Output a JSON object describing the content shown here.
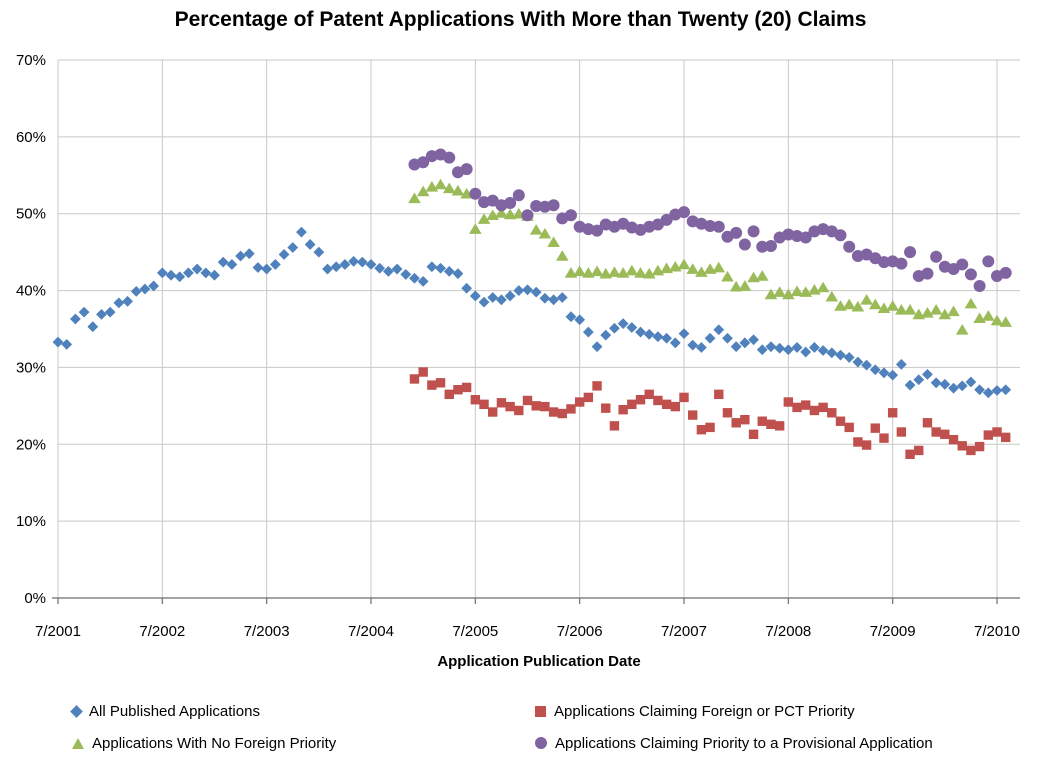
{
  "chart_data": {
    "type": "scatter",
    "title": "Percentage of Patent Applications With More than Twenty (20) Claims",
    "xlabel": "Application Publication Date",
    "ylabel": "",
    "ylim": [
      0,
      70
    ],
    "grid": true,
    "legend_position": "bottom",
    "x_ticks": [
      "7/2001",
      "7/2002",
      "7/2003",
      "7/2004",
      "7/2005",
      "7/2006",
      "7/2007",
      "7/2008",
      "7/2009",
      "7/2010"
    ],
    "y_ticks": [
      "0%",
      "10%",
      "20%",
      "30%",
      "40%",
      "50%",
      "60%",
      "70%"
    ],
    "x_unit": "month",
    "x_origin": "2001-07",
    "colors": {
      "gridline": "#C8C8C8",
      "axis": "#6E6E6E",
      "text": "#000000"
    },
    "series": [
      {
        "name": "All Published Applications",
        "marker": "diamond",
        "color": "#4F81BD",
        "start": "2001-07",
        "values": [
          33.3,
          33.0,
          36.3,
          37.2,
          35.3,
          36.9,
          37.2,
          38.4,
          38.6,
          39.9,
          40.2,
          40.6,
          42.3,
          42.0,
          41.8,
          42.3,
          42.8,
          42.3,
          42.0,
          43.7,
          43.4,
          44.5,
          44.8,
          43.0,
          42.8,
          43.4,
          44.7,
          45.6,
          47.6,
          46.0,
          45.0,
          42.8,
          43.1,
          43.4,
          43.8,
          43.7,
          43.4,
          42.9,
          42.5,
          42.8,
          42.1,
          41.6,
          41.2,
          43.1,
          42.9,
          42.5,
          42.2,
          40.3,
          39.3,
          38.5,
          39.1,
          38.8,
          39.3,
          40.0,
          40.1,
          39.8,
          39.0,
          38.8,
          39.1,
          36.6,
          36.2,
          34.6,
          32.7,
          34.2,
          35.1,
          35.7,
          35.2,
          34.6,
          34.3,
          34.0,
          33.8,
          33.2,
          34.4,
          32.9,
          32.6,
          33.8,
          34.9,
          33.8,
          32.7,
          33.2,
          33.6,
          32.3,
          32.7,
          32.5,
          32.3,
          32.6,
          32.0,
          32.6,
          32.2,
          31.9,
          31.6,
          31.3,
          30.7,
          30.3,
          29.7,
          29.3,
          29.0,
          30.4,
          27.7,
          28.4,
          29.1,
          28.0,
          27.8,
          27.3,
          27.6,
          28.1,
          27.1,
          26.7,
          27.0,
          27.1
        ]
      },
      {
        "name": "Applications Claiming Foreign or PCT Priority",
        "marker": "square",
        "color": "#C0504D",
        "start": "2004-12",
        "values": [
          28.5,
          29.4,
          27.7,
          28.0,
          26.5,
          27.1,
          27.4,
          25.8,
          25.2,
          24.2,
          25.4,
          24.9,
          24.4,
          25.7,
          25.0,
          24.9,
          24.2,
          24.0,
          24.6,
          25.5,
          26.1,
          27.6,
          24.7,
          22.4,
          24.5,
          25.2,
          25.8,
          26.5,
          25.7,
          25.2,
          24.9,
          26.1,
          23.8,
          21.9,
          22.2,
          26.5,
          24.1,
          22.8,
          23.2,
          21.3,
          23.0,
          22.6,
          22.4,
          25.5,
          24.8,
          25.1,
          24.4,
          24.8,
          24.1,
          23.0,
          22.2,
          20.3,
          19.9,
          22.1,
          20.8,
          24.1,
          21.6,
          18.7,
          19.2,
          22.8,
          21.6,
          21.3,
          20.6,
          19.8,
          19.2,
          19.7,
          21.2,
          21.6,
          20.9
        ]
      },
      {
        "name": "Applications With No Foreign Priority",
        "marker": "triangle",
        "color": "#9BBB59",
        "start": "2004-12",
        "values": [
          52.0,
          52.9,
          53.5,
          53.8,
          53.3,
          53.0,
          52.6,
          48.0,
          49.3,
          49.8,
          50.1,
          49.9,
          50.0,
          49.7,
          47.9,
          47.4,
          46.3,
          44.5,
          42.3,
          42.5,
          42.3,
          42.5,
          42.2,
          42.4,
          42.3,
          42.6,
          42.3,
          42.2,
          42.6,
          42.9,
          43.1,
          43.4,
          42.8,
          42.4,
          42.8,
          43.0,
          41.8,
          40.5,
          40.6,
          41.7,
          41.9,
          39.5,
          39.8,
          39.5,
          39.9,
          39.8,
          40.1,
          40.4,
          39.2,
          38.0,
          38.2,
          37.9,
          38.8,
          38.2,
          37.7,
          38.0,
          37.5,
          37.5,
          36.9,
          37.1,
          37.5,
          36.9,
          37.3,
          34.9,
          38.3,
          36.4,
          36.7,
          36.1,
          35.9
        ]
      },
      {
        "name": "Applications Claiming Priority to a Provisional Application",
        "marker": "circle",
        "color": "#8064A2",
        "start": "2004-12",
        "values": [
          56.4,
          56.7,
          57.5,
          57.7,
          57.3,
          55.4,
          55.8,
          52.6,
          51.5,
          51.7,
          51.1,
          51.4,
          52.4,
          49.8,
          51.0,
          50.9,
          51.1,
          49.4,
          49.8,
          48.3,
          48.0,
          47.8,
          48.6,
          48.3,
          48.7,
          48.2,
          47.9,
          48.3,
          48.6,
          49.2,
          49.9,
          50.2,
          49.0,
          48.7,
          48.4,
          48.3,
          47.0,
          47.5,
          46.0,
          47.7,
          45.7,
          45.8,
          46.9,
          47.3,
          47.1,
          46.9,
          47.7,
          48.0,
          47.7,
          47.2,
          45.7,
          44.5,
          44.7,
          44.2,
          43.7,
          43.8,
          43.5,
          45.0,
          41.9,
          42.2,
          44.4,
          43.1,
          42.8,
          43.4,
          42.1,
          40.6,
          43.8,
          41.9,
          42.3
        ]
      }
    ]
  }
}
